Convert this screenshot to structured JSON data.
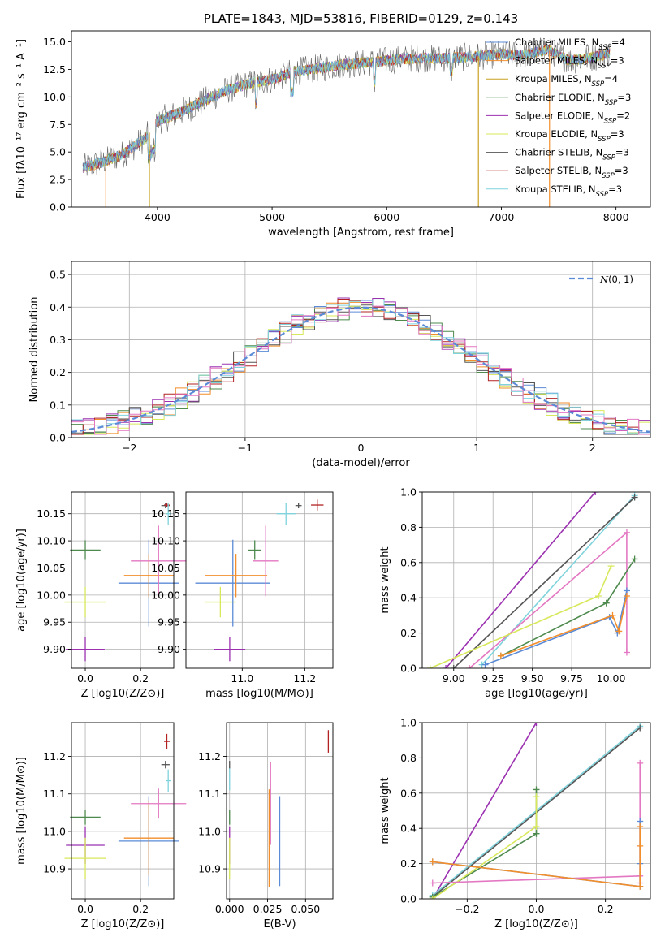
{
  "colors": {
    "chabrier_miles": "#5b8bd6",
    "salpeter_miles": "#f28e2b",
    "kroupa_miles": "#c8a020",
    "chabrier_elodie": "#4e8a4e",
    "salpeter_elodie": "#9b30b0",
    "kroupa_elodie": "#d8e85a",
    "chabrier_stelib": "#555555",
    "salpeter_stelib": "#b22222",
    "kroupa_stelib": "#7fd3dd",
    "pink": "#e377c2",
    "normal_curve": "#5b8bd6"
  },
  "chart_data": [
    {
      "id": "spectrum",
      "type": "line",
      "title": "PLATE=1843, MJD=53816, FIBERID=0129, z=0.143",
      "xlabel": "wavelength [Angstrom, rest frame]",
      "ylabel": "Flux [fλ10⁻¹⁷ erg cm⁻² s⁻¹ A⁻¹]",
      "xlim": [
        3250,
        8300
      ],
      "ylim": [
        0,
        16
      ],
      "xticks": [
        "4000",
        "5000",
        "6000",
        "7000",
        "8000"
      ],
      "yticks": [
        "0.0",
        "2.5",
        "5.0",
        "7.5",
        "10.0",
        "12.5",
        "15.0"
      ],
      "legend": [
        {
          "label": "Chabrier MILES, N",
          "sub": "SSP",
          "suffix": "=4"
        },
        {
          "label": "Salpeter MILES, N",
          "sub": "SSP",
          "suffix": "=3"
        },
        {
          "label": "Kroupa MILES, N",
          "sub": "SSP",
          "suffix": "=4"
        },
        {
          "label": "Chabrier ELODIE, N",
          "sub": "SSP",
          "suffix": "=3"
        },
        {
          "label": "Salpeter ELODIE, N",
          "sub": "SSP",
          "suffix": "=2"
        },
        {
          "label": "Kroupa ELODIE, N",
          "sub": "SSP",
          "suffix": "=3"
        },
        {
          "label": "Chabrier STELIB, N",
          "sub": "SSP",
          "suffix": "=3"
        },
        {
          "label": "Salpeter STELIB, N",
          "sub": "SSP",
          "suffix": "=3"
        },
        {
          "label": "Kroupa STELIB, N",
          "sub": "SSP",
          "suffix": "=3"
        }
      ],
      "envelope": [
        [
          3350,
          3.6
        ],
        [
          3500,
          4.0
        ],
        [
          3700,
          4.8
        ],
        [
          3900,
          6.3
        ],
        [
          4000,
          7.8
        ],
        [
          4200,
          8.6
        ],
        [
          4400,
          9.6
        ],
        [
          4600,
          10.6
        ],
        [
          4800,
          11.2
        ],
        [
          5000,
          11.6
        ],
        [
          5200,
          12.3
        ],
        [
          5400,
          12.6
        ],
        [
          5600,
          12.9
        ],
        [
          5800,
          13.1
        ],
        [
          6000,
          13.3
        ],
        [
          6200,
          13.5
        ],
        [
          6500,
          13.5
        ],
        [
          6800,
          13.7
        ],
        [
          7000,
          13.9
        ],
        [
          7200,
          13.8
        ],
        [
          7400,
          14.3
        ],
        [
          7600,
          13.3
        ],
        [
          7800,
          13.6
        ],
        [
          7950,
          14.0
        ]
      ]
    },
    {
      "id": "residuals",
      "type": "histogram",
      "xlabel": "(data-model)/error",
      "ylabel": "Normed distribution",
      "xlim": [
        -2.5,
        2.5
      ],
      "ylim": [
        0,
        0.54
      ],
      "xticks": [
        "−2",
        "−1",
        "0",
        "1",
        "2"
      ],
      "yticks": [
        "0.0",
        "0.1",
        "0.2",
        "0.3",
        "0.4",
        "0.5"
      ],
      "bin_width": 0.1,
      "legend": "N(0, 1)",
      "grid": true
    },
    {
      "id": "age_vs_Z",
      "type": "errorbar",
      "xlabel": "Z [log10(Z/Z⊙)]",
      "ylabel": "age  [log10(age/yr)]",
      "xlim": [
        -0.05,
        0.32
      ],
      "ylim": [
        9.865,
        10.19
      ],
      "xticks": [
        "0.0",
        "0.2"
      ],
      "yticks": [
        "9.90",
        "9.95",
        "10.00",
        "10.05",
        "10.10",
        "10.15"
      ],
      "points": [
        {
          "x": 0.0,
          "y": 10.083,
          "xerr": 0.055,
          "yerr": 0.018,
          "c": "chabrier_elodie"
        },
        {
          "x": 0.0,
          "y": 9.9,
          "xerr": 0.07,
          "yerr": 0.022,
          "c": "salpeter_elodie"
        },
        {
          "x": 0.0,
          "y": 9.987,
          "xerr": 0.075,
          "yerr": 0.028,
          "c": "kroupa_elodie"
        },
        {
          "x": 0.23,
          "y": 10.022,
          "xerr": 0.11,
          "yerr": 0.08,
          "c": "chabrier_miles"
        },
        {
          "x": 0.23,
          "y": 10.036,
          "xerr": 0.09,
          "yerr": 0.04,
          "c": "salpeter_miles"
        },
        {
          "x": 0.265,
          "y": 10.063,
          "xerr": 0.1,
          "yerr": 0.065,
          "c": "pink"
        },
        {
          "x": 0.29,
          "y": 10.165,
          "xerr": 0.015,
          "yerr": 0.005,
          "c": "chabrier_stelib"
        },
        {
          "x": 0.295,
          "y": 10.166,
          "xerr": 0.01,
          "yerr": 0.004,
          "c": "salpeter_stelib"
        },
        {
          "x": 0.3,
          "y": 10.15,
          "xerr": 0.008,
          "yerr": 0.02,
          "c": "kroupa_stelib"
        }
      ]
    },
    {
      "id": "age_vs_mass",
      "type": "errorbar",
      "xlabel": "mass [log10(M/M⊙)]",
      "ylabel": "",
      "xlim": [
        10.82,
        11.29
      ],
      "ylim": [
        9.865,
        10.19
      ],
      "xticks": [
        "11.0",
        "11.2"
      ],
      "yticks": [
        "9.90",
        "9.95",
        "10.00",
        "10.05",
        "10.10",
        "10.15"
      ],
      "points": [
        {
          "x": 11.04,
          "y": 10.083,
          "xerr": 0.02,
          "yerr": 0.018,
          "c": "chabrier_elodie"
        },
        {
          "x": 10.96,
          "y": 9.9,
          "xerr": 0.05,
          "yerr": 0.022,
          "c": "salpeter_elodie"
        },
        {
          "x": 10.93,
          "y": 9.987,
          "xerr": 0.05,
          "yerr": 0.028,
          "c": "kroupa_elodie"
        },
        {
          "x": 10.97,
          "y": 10.022,
          "xerr": 0.12,
          "yerr": 0.08,
          "c": "chabrier_miles"
        },
        {
          "x": 10.98,
          "y": 10.036,
          "xerr": 0.1,
          "yerr": 0.04,
          "c": "salpeter_miles"
        },
        {
          "x": 11.075,
          "y": 10.063,
          "xerr": 0.04,
          "yerr": 0.065,
          "c": "pink"
        },
        {
          "x": 11.18,
          "y": 10.165,
          "xerr": 0.01,
          "yerr": 0.005,
          "c": "chabrier_stelib"
        },
        {
          "x": 11.24,
          "y": 10.166,
          "xerr": 0.02,
          "yerr": 0.01,
          "c": "salpeter_stelib"
        },
        {
          "x": 11.14,
          "y": 10.15,
          "xerr": 0.03,
          "yerr": 0.02,
          "c": "kroupa_stelib"
        }
      ]
    },
    {
      "id": "mass_weight_vs_age",
      "type": "line",
      "xlabel": "age  [log10(age/yr)]",
      "ylabel": "mass weight",
      "xlim": [
        8.8,
        10.25
      ],
      "ylim": [
        0,
        1.0
      ],
      "xticks": [
        "9.00",
        "9.25",
        "9.50",
        "9.75",
        "10.00"
      ],
      "yticks": [
        "0.0",
        "0.2",
        "0.4",
        "0.6",
        "0.8",
        "1.0"
      ],
      "series": [
        {
          "c": "salpeter_elodie",
          "x": [
            8.95,
            9.9
          ],
          "y": [
            0.0,
            1.0
          ]
        },
        {
          "c": "kroupa_stelib",
          "x": [
            9.18,
            10.15
          ],
          "y": [
            0.02,
            0.98
          ]
        },
        {
          "c": "chabrier_stelib",
          "x": [
            9.0,
            10.15
          ],
          "y": [
            0.0,
            0.97
          ]
        },
        {
          "c": "pink",
          "x": [
            9.1,
            10.1,
            10.1
          ],
          "y": [
            0.0,
            0.77,
            0.09
          ]
        },
        {
          "c": "kroupa_elodie",
          "x": [
            8.85,
            9.92,
            10.0
          ],
          "y": [
            0.0,
            0.41,
            0.58
          ]
        },
        {
          "c": "chabrier_elodie",
          "x": [
            9.3,
            9.97,
            10.15
          ],
          "y": [
            0.07,
            0.37,
            0.62
          ]
        },
        {
          "c": "chabrier_miles",
          "x": [
            9.2,
            9.99,
            10.04,
            10.1
          ],
          "y": [
            0.02,
            0.29,
            0.2,
            0.44
          ]
        },
        {
          "c": "salpeter_miles",
          "x": [
            9.3,
            10.01,
            10.05,
            10.1
          ],
          "y": [
            0.07,
            0.3,
            0.21,
            0.41
          ]
        }
      ]
    },
    {
      "id": "mass_vs_Z",
      "type": "errorbar",
      "xlabel": "Z [log10(Z/Z⊙)]",
      "ylabel": "mass [log10(M/M⊙)]",
      "xlim": [
        -0.05,
        0.32
      ],
      "ylim": [
        10.82,
        11.29
      ],
      "xticks": [
        "0.0",
        "0.2"
      ],
      "yticks": [
        "10.9",
        "11.0",
        "11.1",
        "11.2"
      ],
      "points": [
        {
          "x": 0.0,
          "y": 11.038,
          "xerr": 0.055,
          "yerr": 0.02,
          "c": "chabrier_elodie"
        },
        {
          "x": 0.0,
          "y": 10.963,
          "xerr": 0.07,
          "yerr": 0.05,
          "c": "salpeter_elodie"
        },
        {
          "x": 0.0,
          "y": 10.928,
          "xerr": 0.075,
          "yerr": 0.055,
          "c": "kroupa_elodie"
        },
        {
          "x": 0.23,
          "y": 10.974,
          "xerr": 0.11,
          "yerr": 0.12,
          "c": "chabrier_miles"
        },
        {
          "x": 0.23,
          "y": 10.982,
          "xerr": 0.09,
          "yerr": 0.1,
          "c": "salpeter_miles"
        },
        {
          "x": 0.265,
          "y": 11.074,
          "xerr": 0.1,
          "yerr": 0.04,
          "c": "pink"
        },
        {
          "x": 0.29,
          "y": 11.178,
          "xerr": 0.015,
          "yerr": 0.01,
          "c": "chabrier_stelib"
        },
        {
          "x": 0.295,
          "y": 11.24,
          "xerr": 0.01,
          "yerr": 0.02,
          "c": "salpeter_stelib"
        },
        {
          "x": 0.3,
          "y": 11.135,
          "xerr": 0.008,
          "yerr": 0.03,
          "c": "kroupa_stelib"
        }
      ]
    },
    {
      "id": "mass_vs_ebv",
      "type": "errorbar",
      "xlabel": "E(B-V)",
      "ylabel": "",
      "xlim": [
        -0.002,
        0.068
      ],
      "ylim": [
        10.82,
        11.29
      ],
      "xticks": [
        "0.000",
        "0.025",
        "0.050"
      ],
      "yticks": [
        "10.9",
        "11.0",
        "11.1",
        "11.2"
      ],
      "points": [
        {
          "x": 0.0,
          "y": 11.038,
          "xerr": 0,
          "yerr": 0.02,
          "c": "chabrier_elodie"
        },
        {
          "x": 0.0,
          "y": 10.963,
          "xerr": 0,
          "yerr": 0.05,
          "c": "salpeter_elodie"
        },
        {
          "x": 0.0,
          "y": 10.928,
          "xerr": 0,
          "yerr": 0.055,
          "c": "kroupa_elodie"
        },
        {
          "x": 0.0,
          "y": 11.14,
          "xerr": 0,
          "yerr": 0.03,
          "c": "kroupa_stelib"
        },
        {
          "x": 0.0,
          "y": 11.178,
          "xerr": 0,
          "yerr": 0.01,
          "c": "chabrier_stelib"
        },
        {
          "x": 0.027,
          "y": 11.074,
          "xerr": 0,
          "yerr": 0.11,
          "c": "pink"
        },
        {
          "x": 0.026,
          "y": 10.982,
          "xerr": 0,
          "yerr": 0.13,
          "c": "salpeter_miles"
        },
        {
          "x": 0.033,
          "y": 10.974,
          "xerr": 0,
          "yerr": 0.12,
          "c": "chabrier_miles"
        },
        {
          "x": 0.065,
          "y": 11.24,
          "xerr": 0,
          "yerr": 0.03,
          "c": "salpeter_stelib"
        }
      ]
    },
    {
      "id": "mass_weight_vs_Z",
      "type": "line",
      "xlabel": "Z [log10(Z/Z⊙)]",
      "ylabel": "mass weight",
      "xlim": [
        -0.33,
        0.33
      ],
      "ylim": [
        0,
        1.0
      ],
      "xticks": [
        "−0.2",
        "0.0",
        "0.2"
      ],
      "yticks": [
        "0.0",
        "0.2",
        "0.4",
        "0.6",
        "0.8",
        "1.0"
      ],
      "series": [
        {
          "c": "salpeter_elodie",
          "x": [
            -0.3,
            0.0
          ],
          "y": [
            0.0,
            1.0
          ]
        },
        {
          "c": "kroupa_stelib",
          "x": [
            -0.3,
            0.3
          ],
          "y": [
            0.02,
            0.98
          ]
        },
        {
          "c": "chabrier_stelib",
          "x": [
            -0.3,
            0.3
          ],
          "y": [
            0.01,
            0.97
          ]
        },
        {
          "c": "chabrier_elodie",
          "x": [
            -0.3,
            0.0,
            0.0
          ],
          "y": [
            0.01,
            0.37,
            0.62
          ]
        },
        {
          "c": "kroupa_elodie",
          "x": [
            -0.3,
            0.0,
            0.0
          ],
          "y": [
            0.0,
            0.41,
            0.58
          ]
        },
        {
          "c": "pink",
          "x": [
            -0.3,
            0.3,
            0.3,
            0.3
          ],
          "y": [
            0.09,
            0.13,
            0.77,
            0.09
          ]
        },
        {
          "c": "chabrier_miles",
          "x": [
            -0.3,
            0.3,
            0.3,
            0.3
          ],
          "y": [
            0.21,
            0.07,
            0.44,
            0.2
          ]
        },
        {
          "c": "salpeter_miles",
          "x": [
            -0.3,
            0.3,
            0.3,
            0.3
          ],
          "y": [
            0.21,
            0.07,
            0.41,
            0.3
          ]
        }
      ]
    }
  ]
}
